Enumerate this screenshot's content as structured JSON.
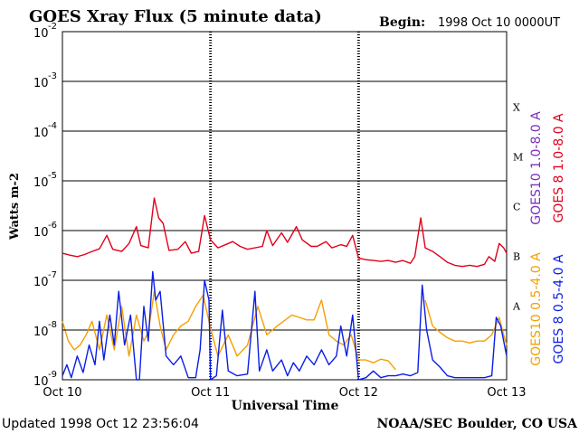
{
  "chart_data": {
    "type": "line",
    "title": "GOES Xray Flux (5 minute data)",
    "begin_label": "Begin:",
    "begin_value": "1998 Oct 10 0000UT",
    "xlabel": "Universal Time",
    "ylabel": "Watts m-2",
    "y_scale": "log",
    "ylim": [
      1e-09,
      0.01
    ],
    "y_ticks": [
      {
        "base": "10",
        "exp": "-2",
        "value": 0.01
      },
      {
        "base": "10",
        "exp": "-3",
        "value": 0.001
      },
      {
        "base": "10",
        "exp": "-4",
        "value": 0.0001
      },
      {
        "base": "10",
        "exp": "-5",
        "value": 1e-05
      },
      {
        "base": "10",
        "exp": "-6",
        "value": 1e-06
      },
      {
        "base": "10",
        "exp": "-7",
        "value": 1e-07
      },
      {
        "base": "10",
        "exp": "-8",
        "value": 1e-08
      },
      {
        "base": "10",
        "exp": "-9",
        "value": 1e-09
      }
    ],
    "x_ticks": [
      "Oct 10",
      "Oct 11",
      "Oct 12",
      "Oct 13"
    ],
    "xlim_days": [
      0,
      3
    ],
    "flare_classes": [
      {
        "label": "X",
        "value": 0.0001
      },
      {
        "label": "M",
        "value": 1e-05
      },
      {
        "label": "C",
        "value": 1e-06
      },
      {
        "label": "B",
        "value": 1e-07
      },
      {
        "label": "A",
        "value": 1e-08
      }
    ],
    "grid": true,
    "legend": [
      {
        "label": "GOES10 1.0-8.0 A",
        "color": "#7b2fbe"
      },
      {
        "label": "GOES 8 1.0-8.0 A",
        "color": "#e0001a"
      },
      {
        "label": "GOES10 0.5-4.0 A",
        "color": "#f5a000"
      },
      {
        "label": "GOES 8 0.5-4.0 A",
        "color": "#0a1ee6"
      }
    ],
    "series": [
      {
        "name": "GOES 8 1.0-8.0 A",
        "color": "#e0001a",
        "points": [
          [
            0,
            3.5e-07
          ],
          [
            0.05,
            3.2e-07
          ],
          [
            0.1,
            3e-07
          ],
          [
            0.15,
            3.3e-07
          ],
          [
            0.2,
            3.8e-07
          ],
          [
            0.25,
            4.3e-07
          ],
          [
            0.3,
            8e-07
          ],
          [
            0.34,
            4.2e-07
          ],
          [
            0.4,
            3.8e-07
          ],
          [
            0.45,
            5.5e-07
          ],
          [
            0.5,
            1.2e-06
          ],
          [
            0.53,
            5e-07
          ],
          [
            0.58,
            4.5e-07
          ],
          [
            0.62,
            4.5e-06
          ],
          [
            0.65,
            1.8e-06
          ],
          [
            0.68,
            1.4e-06
          ],
          [
            0.72,
            4e-07
          ],
          [
            0.78,
            4.2e-07
          ],
          [
            0.83,
            6e-07
          ],
          [
            0.87,
            3.5e-07
          ],
          [
            0.92,
            3.8e-07
          ],
          [
            0.96,
            2e-06
          ],
          [
            1.0,
            6.5e-07
          ],
          [
            1.05,
            4.5e-07
          ],
          [
            1.12,
            5.5e-07
          ],
          [
            1.15,
            6e-07
          ],
          [
            1.2,
            4.8e-07
          ],
          [
            1.25,
            4.2e-07
          ],
          [
            1.35,
            4.8e-07
          ],
          [
            1.38,
            1e-06
          ],
          [
            1.42,
            5e-07
          ],
          [
            1.48,
            9e-07
          ],
          [
            1.52,
            5.8e-07
          ],
          [
            1.58,
            1.2e-06
          ],
          [
            1.62,
            6.5e-07
          ],
          [
            1.68,
            4.8e-07
          ],
          [
            1.72,
            4.8e-07
          ],
          [
            1.78,
            6e-07
          ],
          [
            1.82,
            4.5e-07
          ],
          [
            1.88,
            5.2e-07
          ],
          [
            1.92,
            4.8e-07
          ],
          [
            1.96,
            8e-07
          ],
          [
            2.0,
            2.8e-07
          ],
          [
            2.05,
            2.6e-07
          ],
          [
            2.1,
            2.5e-07
          ],
          [
            2.15,
            2.4e-07
          ],
          [
            2.2,
            2.5e-07
          ],
          [
            2.25,
            2.3e-07
          ],
          [
            2.3,
            2.5e-07
          ],
          [
            2.35,
            2.2e-07
          ],
          [
            2.38,
            3e-07
          ],
          [
            2.42,
            1.8e-06
          ],
          [
            2.45,
            4.5e-07
          ],
          [
            2.5,
            3.8e-07
          ],
          [
            2.55,
            3e-07
          ],
          [
            2.6,
            2.3e-07
          ],
          [
            2.65,
            2e-07
          ],
          [
            2.7,
            1.9e-07
          ],
          [
            2.75,
            2e-07
          ],
          [
            2.8,
            1.9e-07
          ],
          [
            2.85,
            2.1e-07
          ],
          [
            2.88,
            3e-07
          ],
          [
            2.92,
            2.4e-07
          ],
          [
            2.95,
            5.5e-07
          ],
          [
            2.98,
            4.5e-07
          ],
          [
            3.0,
            3.5e-07
          ]
        ]
      },
      {
        "name": "GOES10 0.5-4.0 A",
        "color": "#f5a000",
        "points": [
          [
            0,
            1.5e-08
          ],
          [
            0.04,
            6e-09
          ],
          [
            0.08,
            4e-09
          ],
          [
            0.12,
            5e-09
          ],
          [
            0.16,
            8e-09
          ],
          [
            0.2,
            1.5e-08
          ],
          [
            0.25,
            4e-09
          ],
          [
            0.3,
            2e-08
          ],
          [
            0.35,
            4e-09
          ],
          [
            0.4,
            3e-08
          ],
          [
            0.45,
            3e-09
          ],
          [
            0.5,
            2e-08
          ],
          [
            0.55,
            6e-09
          ],
          [
            0.58,
            9e-09
          ],
          [
            0.62,
            6e-08
          ],
          [
            0.66,
            1.2e-08
          ],
          [
            0.7,
            4e-09
          ],
          [
            0.75,
            8e-09
          ],
          [
            0.8,
            1.2e-08
          ],
          [
            0.85,
            1.5e-08
          ],
          [
            0.9,
            3e-08
          ],
          [
            0.95,
            5e-08
          ],
          [
            1.0,
            1.1e-08
          ],
          [
            1.05,
            3e-09
          ],
          [
            1.12,
            8e-09
          ],
          [
            1.18,
            3e-09
          ],
          [
            1.25,
            5e-09
          ],
          [
            1.32,
            3e-08
          ],
          [
            1.38,
            8e-09
          ],
          [
            1.45,
            1.2e-08
          ],
          [
            1.55,
            2e-08
          ],
          [
            1.6,
            1.8e-08
          ],
          [
            1.65,
            1.6e-08
          ],
          [
            1.7,
            1.6e-08
          ],
          [
            1.75,
            4e-08
          ],
          [
            1.8,
            8e-09
          ],
          [
            1.85,
            6e-09
          ],
          [
            1.9,
            5e-09
          ],
          [
            1.95,
            8e-09
          ],
          [
            2.0,
            2.5e-09
          ],
          [
            2.05,
            2.5e-09
          ],
          [
            2.1,
            2.2e-09
          ],
          [
            2.15,
            2.6e-09
          ],
          [
            2.2,
            2.4e-09
          ],
          [
            2.25,
            1.6e-09
          ],
          [
            2.3,
            null
          ],
          [
            2.42,
            null
          ],
          [
            2.45,
            4e-08
          ],
          [
            2.5,
            1.2e-08
          ],
          [
            2.55,
            9e-09
          ],
          [
            2.6,
            7e-09
          ],
          [
            2.65,
            6e-09
          ],
          [
            2.7,
            6e-09
          ],
          [
            2.75,
            5.5e-09
          ],
          [
            2.8,
            6e-09
          ],
          [
            2.85,
            6e-09
          ],
          [
            2.9,
            8e-09
          ],
          [
            2.95,
            1.8e-08
          ],
          [
            2.98,
            8e-09
          ],
          [
            3.0,
            5e-09
          ]
        ]
      },
      {
        "name": "GOES 8 0.5-4.0 A",
        "color": "#0a1ee6",
        "points": [
          [
            0,
            1.2e-09
          ],
          [
            0.03,
            2e-09
          ],
          [
            0.06,
            1.1e-09
          ],
          [
            0.1,
            3e-09
          ],
          [
            0.14,
            1.4e-09
          ],
          [
            0.18,
            5e-09
          ],
          [
            0.22,
            2e-09
          ],
          [
            0.25,
            1.5e-08
          ],
          [
            0.28,
            2.5e-09
          ],
          [
            0.32,
            2e-08
          ],
          [
            0.35,
            5e-09
          ],
          [
            0.38,
            6e-08
          ],
          [
            0.42,
            5e-09
          ],
          [
            0.46,
            2e-08
          ],
          [
            0.5,
            1e-09
          ],
          [
            0.52,
            1e-09
          ],
          [
            0.55,
            3e-08
          ],
          [
            0.58,
            6e-09
          ],
          [
            0.61,
            1.5e-07
          ],
          [
            0.63,
            4e-08
          ],
          [
            0.66,
            6e-08
          ],
          [
            0.7,
            3e-09
          ],
          [
            0.75,
            2e-09
          ],
          [
            0.8,
            3e-09
          ],
          [
            0.85,
            1.1e-09
          ],
          [
            0.9,
            1.1e-09
          ],
          [
            0.93,
            4e-09
          ],
          [
            0.96,
            1e-07
          ],
          [
            0.99,
            4e-08
          ],
          [
            1.0,
            1e-09
          ],
          [
            1.04,
            1.2e-09
          ],
          [
            1.08,
            2.5e-08
          ],
          [
            1.12,
            1.5e-09
          ],
          [
            1.18,
            1.2e-09
          ],
          [
            1.25,
            1.3e-09
          ],
          [
            1.3,
            6e-08
          ],
          [
            1.33,
            1.5e-09
          ],
          [
            1.38,
            4e-09
          ],
          [
            1.42,
            1.5e-09
          ],
          [
            1.48,
            2.5e-09
          ],
          [
            1.52,
            1.2e-09
          ],
          [
            1.56,
            2.2e-09
          ],
          [
            1.6,
            1.5e-09
          ],
          [
            1.65,
            3e-09
          ],
          [
            1.7,
            2e-09
          ],
          [
            1.75,
            4e-09
          ],
          [
            1.8,
            2e-09
          ],
          [
            1.85,
            3e-09
          ],
          [
            1.88,
            1.2e-08
          ],
          [
            1.92,
            3e-09
          ],
          [
            1.96,
            2e-08
          ],
          [
            2.0,
            1e-09
          ],
          [
            2.05,
            1.1e-09
          ],
          [
            2.1,
            1.5e-09
          ],
          [
            2.15,
            1.1e-09
          ],
          [
            2.2,
            1.2e-09
          ],
          [
            2.25,
            1.2e-09
          ],
          [
            2.3,
            1.3e-09
          ],
          [
            2.35,
            1.2e-09
          ],
          [
            2.4,
            1.4e-09
          ],
          [
            2.43,
            8e-08
          ],
          [
            2.46,
            1e-08
          ],
          [
            2.5,
            2.5e-09
          ],
          [
            2.55,
            1.8e-09
          ],
          [
            2.6,
            1.2e-09
          ],
          [
            2.65,
            1.1e-09
          ],
          [
            2.7,
            1.1e-09
          ],
          [
            2.75,
            1.1e-09
          ],
          [
            2.8,
            1.1e-09
          ],
          [
            2.85,
            1.1e-09
          ],
          [
            2.9,
            1.2e-09
          ],
          [
            2.93,
            1.8e-08
          ],
          [
            2.96,
            1.2e-08
          ],
          [
            3.0,
            3e-09
          ]
        ]
      }
    ],
    "footer_updated": "Updated 1998 Oct 12 23:56:04",
    "footer_source": "NOAA/SEC Boulder, CO USA"
  }
}
